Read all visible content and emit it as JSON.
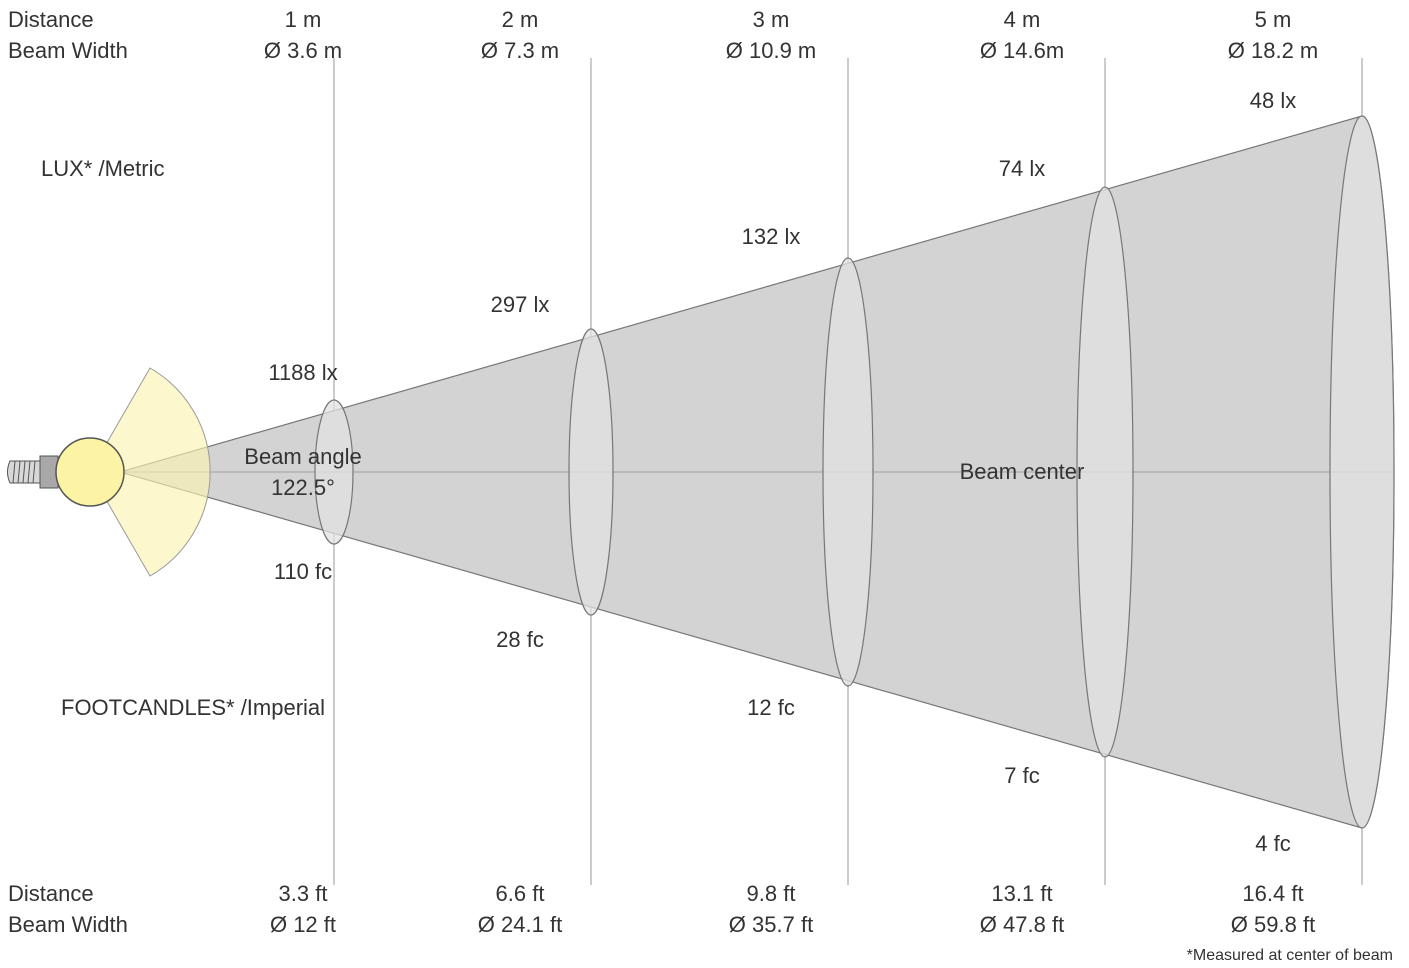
{
  "labels": {
    "distance": "Distance",
    "beam_width": "Beam Width",
    "lux_metric": "LUX* /Metric",
    "footcandles_imperial": "FOOTCANDLES* /Imperial",
    "beam_angle": "Beam angle",
    "beam_angle_value": "122.5°",
    "beam_center": "Beam center",
    "footnote": "*Measured at center of beam"
  },
  "metric": {
    "distances": [
      "1 m",
      "2 m",
      "3 m",
      "4 m",
      "5 m"
    ],
    "beam_widths": [
      "Ø 3.6 m",
      "Ø 7.3 m",
      "Ø 10.9 m",
      "Ø 14.6m",
      "Ø 18.2 m"
    ],
    "lux": [
      "1188 lx",
      "297 lx",
      "132 lx",
      "74 lx",
      "48 lx"
    ]
  },
  "imperial": {
    "distances": [
      "3.3 ft",
      "6.6 ft",
      "9.8 ft",
      "13.1 ft",
      "16.4 ft"
    ],
    "beam_widths": [
      "Ø 12 ft",
      "Ø 24.1 ft",
      "Ø 35.7 ft",
      "Ø 47.8 ft",
      "Ø 59.8 ft"
    ],
    "footcandles": [
      "110 fc",
      "28 fc",
      "12 fc",
      "7 fc",
      "4 fc"
    ]
  },
  "colors": {
    "cone_fill": "#d3d3d3",
    "cone_stroke": "#777777",
    "bulb_fill": "#fdf3a4",
    "beam_angle_fill": "#fbf3b0",
    "gridline": "#bbbbbb",
    "text": "#333333"
  }
}
